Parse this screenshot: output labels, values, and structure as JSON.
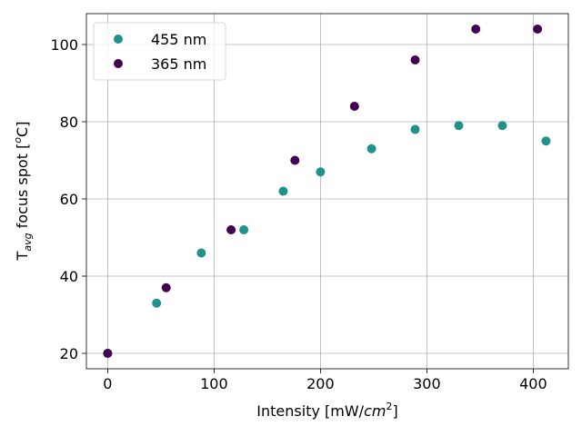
{
  "chart_data": {
    "type": "scatter",
    "xlabel": {
      "main": "Intensity [mW/",
      "italic": "cm",
      "sup": "2",
      "tail": "]"
    },
    "ylabel": {
      "main": "T",
      "sub": "avg",
      "tail": " focus spot [",
      "sup": "o",
      "unit": "C]"
    },
    "xlim": [
      -20,
      433
    ],
    "ylim": [
      16,
      108
    ],
    "xticks": [
      0,
      100,
      200,
      300,
      400
    ],
    "yticks": [
      20,
      40,
      60,
      80,
      100
    ],
    "grid": true,
    "legend_position": "top-left",
    "series": [
      {
        "name": "455 nm",
        "color": "#21918c",
        "x": [
          0,
          46,
          88,
          128,
          165,
          200,
          248,
          289,
          330,
          371,
          412
        ],
        "y": [
          20,
          33,
          46,
          52,
          62,
          67,
          73,
          78,
          79,
          79,
          75
        ]
      },
      {
        "name": "365 nm",
        "color": "#440154",
        "x": [
          0,
          55,
          116,
          176,
          232,
          289,
          346,
          404
        ],
        "y": [
          20,
          37,
          52,
          70,
          84,
          96,
          104,
          104
        ]
      }
    ]
  }
}
